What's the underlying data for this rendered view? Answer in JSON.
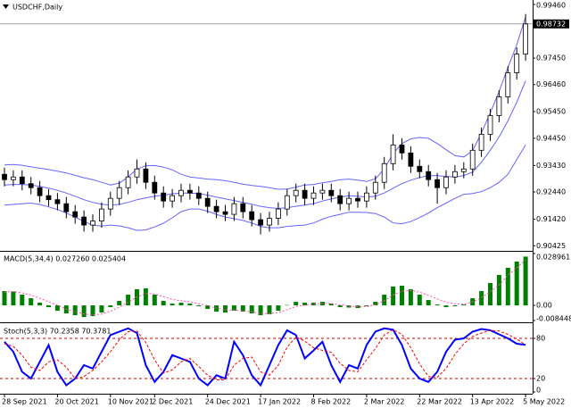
{
  "chart_data": [
    {
      "type": "candlestick",
      "title": "USDCHF,Daily",
      "open": [
        0.931,
        0.929,
        0.93,
        0.9275,
        0.926,
        0.923,
        0.9215,
        0.92,
        0.917,
        0.915,
        0.912,
        0.9135,
        0.918,
        0.922,
        0.926,
        0.93,
        0.933,
        0.928,
        0.924,
        0.921,
        0.923,
        0.925,
        0.924,
        0.922,
        0.919,
        0.917,
        0.916,
        0.92,
        0.917,
        0.914,
        0.912,
        0.9145,
        0.918,
        0.923,
        0.925,
        0.922,
        0.924,
        0.925,
        0.923,
        0.92,
        0.922,
        0.921,
        0.924,
        0.928,
        0.935,
        0.942,
        0.939,
        0.934,
        0.932,
        0.929,
        0.926,
        0.93,
        0.932,
        0.933,
        0.94,
        0.946,
        0.953,
        0.96,
        0.969,
        0.976
      ],
      "high": [
        0.9335,
        0.9325,
        0.9325,
        0.93,
        0.9285,
        0.9255,
        0.924,
        0.9225,
        0.9195,
        0.9175,
        0.916,
        0.9205,
        0.9245,
        0.9285,
        0.9325,
        0.9365,
        0.9355,
        0.9305,
        0.9265,
        0.9255,
        0.9275,
        0.9275,
        0.9265,
        0.9245,
        0.9215,
        0.9195,
        0.9225,
        0.9225,
        0.9195,
        0.9165,
        0.917,
        0.9205,
        0.9255,
        0.9275,
        0.9275,
        0.9265,
        0.9275,
        0.9275,
        0.9255,
        0.9245,
        0.9245,
        0.9265,
        0.9305,
        0.9375,
        0.946,
        0.9445,
        0.9415,
        0.9365,
        0.9345,
        0.9315,
        0.9325,
        0.9345,
        0.9355,
        0.9425,
        0.9485,
        0.9555,
        0.9625,
        0.9715,
        0.9785,
        0.991
      ],
      "low": [
        0.9265,
        0.9265,
        0.925,
        0.9235,
        0.9205,
        0.919,
        0.9175,
        0.9145,
        0.9125,
        0.9095,
        0.9095,
        0.911,
        0.9155,
        0.9195,
        0.9235,
        0.9275,
        0.9255,
        0.9215,
        0.9185,
        0.9185,
        0.9205,
        0.9215,
        0.9195,
        0.9165,
        0.9145,
        0.9135,
        0.9135,
        0.9145,
        0.9115,
        0.9085,
        0.9095,
        0.912,
        0.9155,
        0.9205,
        0.9195,
        0.9195,
        0.9215,
        0.9205,
        0.9175,
        0.9175,
        0.9185,
        0.9185,
        0.9215,
        0.9255,
        0.9325,
        0.9365,
        0.9315,
        0.9295,
        0.9265,
        0.92,
        0.9235,
        0.9275,
        0.9295,
        0.9305,
        0.9375,
        0.9435,
        0.9505,
        0.9575,
        0.9665,
        0.9735
      ],
      "close": [
        0.929,
        0.93,
        0.9275,
        0.926,
        0.923,
        0.9215,
        0.92,
        0.917,
        0.915,
        0.912,
        0.9135,
        0.918,
        0.922,
        0.926,
        0.93,
        0.933,
        0.928,
        0.924,
        0.921,
        0.923,
        0.925,
        0.924,
        0.922,
        0.919,
        0.917,
        0.916,
        0.92,
        0.917,
        0.914,
        0.912,
        0.9145,
        0.918,
        0.923,
        0.925,
        0.922,
        0.924,
        0.925,
        0.923,
        0.92,
        0.922,
        0.921,
        0.924,
        0.928,
        0.935,
        0.942,
        0.939,
        0.934,
        0.932,
        0.929,
        0.926,
        0.93,
        0.932,
        0.933,
        0.94,
        0.946,
        0.953,
        0.96,
        0.969,
        0.976,
        0.9873
      ],
      "up_color": "#ffffff",
      "down_color": "#000000",
      "series": [
        {
          "color": "#6464ff",
          "values": [
            0.9345,
            0.9347,
            0.9344,
            0.9338,
            0.9333,
            0.9328,
            0.9322,
            0.9315,
            0.9306,
            0.9297,
            0.929,
            0.928,
            0.927,
            0.9277,
            0.93,
            0.933,
            0.9342,
            0.9343,
            0.9337,
            0.9327,
            0.931,
            0.93,
            0.9296,
            0.9292,
            0.929,
            0.9286,
            0.928,
            0.9273,
            0.9268,
            0.9265,
            0.926,
            0.9254,
            0.9255,
            0.9262,
            0.927,
            0.9272,
            0.9278,
            0.9283,
            0.929,
            0.9292,
            0.9288,
            0.9283,
            0.9293,
            0.933,
            0.9388,
            0.9425,
            0.9443,
            0.9448,
            0.9445,
            0.9425,
            0.9402,
            0.938,
            0.9375,
            0.9398,
            0.9465,
            0.954,
            0.962,
            0.971,
            0.9795,
            0.99
          ]
        },
        {
          "color": "#6464ff",
          "values": [
            0.927,
            0.9272,
            0.9272,
            0.927,
            0.9265,
            0.9258,
            0.925,
            0.924,
            0.9228,
            0.9215,
            0.9205,
            0.9198,
            0.9195,
            0.9197,
            0.9205,
            0.9215,
            0.9222,
            0.9228,
            0.9232,
            0.9237,
            0.924,
            0.924,
            0.9238,
            0.9232,
            0.9225,
            0.9218,
            0.9212,
            0.9205,
            0.9198,
            0.919,
            0.9185,
            0.9182,
            0.9185,
            0.919,
            0.9195,
            0.92,
            0.921,
            0.9218,
            0.9225,
            0.923,
            0.9228,
            0.9225,
            0.9228,
            0.924,
            0.9258,
            0.9275,
            0.9288,
            0.9298,
            0.9305,
            0.9305,
            0.9302,
            0.93,
            0.9305,
            0.9318,
            0.9355,
            0.94,
            0.945,
            0.951,
            0.958,
            0.966
          ]
        },
        {
          "color": "#6464ff",
          "values": [
            0.9195,
            0.9197,
            0.92,
            0.9202,
            0.9197,
            0.9188,
            0.9178,
            0.9165,
            0.915,
            0.9133,
            0.912,
            0.9116,
            0.912,
            0.9117,
            0.911,
            0.91,
            0.9102,
            0.9113,
            0.9127,
            0.9147,
            0.917,
            0.918,
            0.918,
            0.9172,
            0.916,
            0.915,
            0.9144,
            0.9137,
            0.9128,
            0.9115,
            0.911,
            0.911,
            0.9115,
            0.9118,
            0.912,
            0.9128,
            0.9142,
            0.9153,
            0.916,
            0.9168,
            0.9168,
            0.9167,
            0.9163,
            0.915,
            0.9128,
            0.9125,
            0.9133,
            0.9148,
            0.9165,
            0.9185,
            0.9202,
            0.922,
            0.9235,
            0.9238,
            0.9245,
            0.926,
            0.928,
            0.931,
            0.9365,
            0.942
          ]
        }
      ],
      "last_price": 0.98732,
      "ylim": [
        0.903,
        0.9956
      ],
      "yticks": [
        {
          "value": 0.9946,
          "label": "0.99460"
        },
        {
          "value": 0.9745,
          "label": "0.97450"
        },
        {
          "value": 0.9646,
          "label": "0.96460"
        },
        {
          "value": 0.9545,
          "label": "0.95450"
        },
        {
          "value": 0.9445,
          "label": "0.94450"
        },
        {
          "value": 0.9343,
          "label": "0.93430"
        },
        {
          "value": 0.9244,
          "label": "0.92440"
        },
        {
          "value": 0.9142,
          "label": "0.91420"
        },
        0.90425
      ]
    },
    {
      "type": "macd",
      "title": "MACD(5,34,4) 0.027260 0.025404",
      "series": [
        {
          "kind": "bar",
          "color": "#008000",
          "values": [
            0.008,
            0.0078,
            0.006,
            0.004,
            0.0015,
            -0.001,
            -0.003,
            -0.0045,
            -0.0055,
            -0.0065,
            -0.006,
            -0.004,
            -0.001,
            0.0025,
            0.006,
            0.009,
            0.0095,
            0.006,
            0.0025,
            0.001,
            0.0015,
            0.001,
            -0.0005,
            -0.002,
            -0.0035,
            -0.004,
            -0.003,
            -0.0035,
            -0.0045,
            -0.0055,
            -0.005,
            -0.003,
            0.0002,
            0.002,
            0.0015,
            0.0015,
            0.002,
            0.001,
            -0.001,
            -0.0012,
            -0.0015,
            -0.0005,
            0.002,
            0.006,
            0.0105,
            0.011,
            0.009,
            0.006,
            0.003,
            0.0005,
            -0.001,
            -0.0005,
            0.0005,
            0.004,
            0.008,
            0.0125,
            0.017,
            0.021,
            0.0245,
            0.02726
          ]
        },
        {
          "kind": "line",
          "color": "#ff4da6",
          "values": [
            0.0075,
            0.0077,
            0.007,
            0.0058,
            0.004,
            0.002,
            0.0001,
            -0.002,
            -0.0035,
            -0.0048,
            -0.0053,
            -0.0048,
            -0.0033,
            -0.001,
            0.0018,
            0.0047,
            0.0066,
            0.0064,
            0.0048,
            0.0033,
            0.0026,
            0.002,
            0.001,
            -0.0002,
            -0.0015,
            -0.0025,
            -0.0027,
            -0.003,
            -0.0036,
            -0.0044,
            -0.0046,
            -0.004,
            -0.0024,
            -0.0006,
            0.0002,
            0.0007,
            0.0012,
            0.0011,
            0.0003,
            -0.0003,
            -0.0008,
            -0.0007,
            0.0004,
            0.0026,
            0.0058,
            0.0079,
            0.0083,
            0.0074,
            0.0056,
            0.0036,
            0.0018,
            0.0009,
            0.0007,
            0.002,
            0.0044,
            0.0076,
            0.0114,
            0.017,
            0.021,
            0.025404
          ]
        }
      ],
      "ylim": [
        -0.008448,
        0.028961
      ],
      "yticks": [
        0.028961,
        {
          "value": 0,
          "label": "0.00"
        },
        -0.008448
      ]
    },
    {
      "type": "line",
      "title": "Stoch(5,3,3) 70.2358 70.3781",
      "categories": [
        "28 Sep 2021",
        null,
        null,
        null,
        null,
        null,
        "20 Oct 2021",
        null,
        null,
        null,
        null,
        null,
        "10 Nov 2021",
        null,
        null,
        null,
        null,
        "2 Dec 2021",
        null,
        null,
        null,
        null,
        null,
        "24 Dec 2021",
        null,
        null,
        null,
        null,
        null,
        "17 Jan 2022",
        null,
        null,
        null,
        null,
        null,
        "8 Feb 2022",
        null,
        null,
        null,
        null,
        null,
        "2 Mar 2022",
        null,
        null,
        null,
        null,
        null,
        "22 Mar 2022",
        null,
        null,
        null,
        null,
        null,
        "13 Apr 2022",
        null,
        null,
        null,
        null,
        null,
        "5 May 2022"
      ],
      "series": [
        {
          "color": "#0000ff",
          "width": 2,
          "values": [
            75,
            60,
            30,
            20,
            45,
            70,
            30,
            10,
            20,
            40,
            35,
            60,
            85,
            90,
            95,
            88,
            40,
            15,
            30,
            55,
            50,
            45,
            20,
            10,
            25,
            20,
            75,
            55,
            25,
            10,
            40,
            70,
            92,
            85,
            50,
            62,
            75,
            40,
            15,
            40,
            35,
            70,
            90,
            95,
            93,
            70,
            35,
            20,
            15,
            30,
            60,
            78,
            80,
            90,
            94,
            92,
            86,
            80,
            72,
            70.2358
          ]
        },
        {
          "color": "#ff0000",
          "width": 1,
          "dashed": true,
          "values": [
            72,
            68,
            55,
            37,
            32,
            45,
            48,
            37,
            20,
            23,
            32,
            45,
            60,
            78,
            90,
            91,
            74,
            48,
            28,
            33,
            45,
            50,
            38,
            25,
            18,
            18,
            40,
            50,
            52,
            30,
            25,
            40,
            67,
            82,
            76,
            66,
            62,
            59,
            43,
            32,
            30,
            48,
            65,
            85,
            93,
            86,
            66,
            42,
            23,
            22,
            35,
            56,
            72,
            83,
            88,
            92,
            91,
            86,
            79,
            70.3781
          ]
        }
      ],
      "ylim": [
        0,
        100
      ],
      "yticks": [
        80,
        20,
        0
      ],
      "grid": true,
      "grid_color": "#c00000"
    }
  ]
}
